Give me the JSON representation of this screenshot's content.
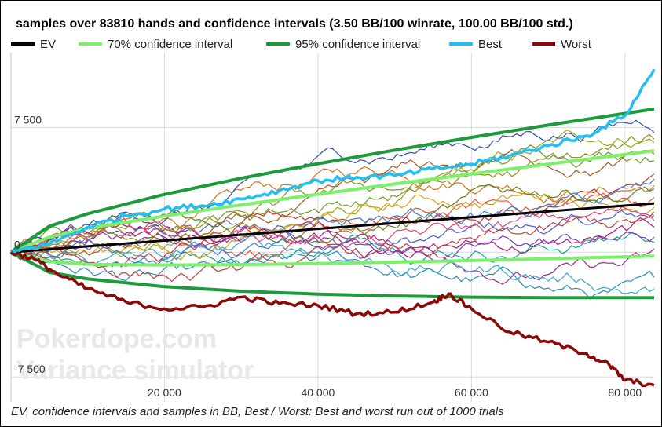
{
  "caption": "EV, confidence intervals and samples in BB, Best / Worst: Best and worst run out of 1000 trials",
  "watermark": [
    "Pokerdope.com",
    "Variance simulator"
  ],
  "colors": {
    "ev": "#000000",
    "ci70": "#7cf06b",
    "ci95": "#1d9a3c",
    "best": "#22bff2",
    "worst": "#8a0a0a",
    "grid": "#d9d9d9"
  },
  "chart_data": {
    "type": "line",
    "title": "samples over 83810 hands and confidence intervals (3.50 BB/100 winrate, 100.00 BB/100 std.)",
    "xlabel": "",
    "ylabel": "",
    "xlim": [
      0,
      83810
    ],
    "ylim": [
      -9000,
      12000
    ],
    "x_ticks": [
      20000,
      40000,
      60000,
      80000
    ],
    "x_tick_labels": [
      "20 000",
      "40 000",
      "60 000",
      "80 000"
    ],
    "y_ticks": [
      7500,
      0,
      -7500
    ],
    "y_tick_labels": [
      "7 500",
      "0",
      "-7 500"
    ],
    "grid": true,
    "legend": {
      "placement": "top",
      "entries": [
        "EV",
        "70% confidence interval",
        "95% confidence interval",
        "Best",
        "Worst"
      ]
    },
    "series": [
      {
        "name": "EV",
        "color": "#000000",
        "style": "line",
        "x": [
          0,
          83810
        ],
        "y": [
          0,
          2933
        ]
      },
      {
        "name": "70% confidence interval",
        "color": "#7cf06b",
        "style": "band",
        "x": [
          0,
          5000,
          10000,
          20000,
          30000,
          40000,
          50000,
          60000,
          70000,
          83810
        ],
        "upper": [
          0,
          907,
          1434,
          2171,
          2845,
          3483,
          4100,
          4702,
          5294,
          6098
        ],
        "lower": [
          0,
          -557,
          -734,
          -771,
          -745,
          -683,
          -600,
          -502,
          -394,
          -232
        ]
      },
      {
        "name": "95% confidence interval",
        "color": "#1d9a3c",
        "style": "band",
        "x": [
          0,
          5000,
          10000,
          20000,
          30000,
          40000,
          50000,
          60000,
          70000,
          83810
        ],
        "upper": [
          0,
          1561,
          2310,
          3472,
          4445,
          5320,
          6133,
          6903,
          7640,
          8605
        ],
        "lower": [
          0,
          -1211,
          -1610,
          -2072,
          -2345,
          -2520,
          -2633,
          -2703,
          -2740,
          -2739
        ]
      },
      {
        "name": "Best",
        "color": "#22bff2",
        "style": "line",
        "x": [
          0,
          5000,
          10000,
          15000,
          20000,
          25000,
          30000,
          35000,
          40000,
          45000,
          50000,
          55000,
          60000,
          65000,
          70000,
          75000,
          80000,
          83810
        ],
        "y": [
          0,
          500,
          1500,
          2200,
          2600,
          2800,
          3200,
          3700,
          4300,
          4500,
          4600,
          5000,
          5300,
          5800,
          6400,
          7000,
          8200,
          11000
        ]
      },
      {
        "name": "Worst",
        "color": "#8a0a0a",
        "style": "line",
        "x": [
          0,
          3000,
          6000,
          10000,
          15000,
          20000,
          25000,
          30000,
          35000,
          40000,
          45000,
          50000,
          55000,
          57000,
          60000,
          65000,
          70000,
          75000,
          78000,
          80000,
          83810
        ],
        "y": [
          0,
          -400,
          -1300,
          -2200,
          -3000,
          -3400,
          -3300,
          -2700,
          -3100,
          -3200,
          -3700,
          -3600,
          -3000,
          -2500,
          -3400,
          -4800,
          -5400,
          -6100,
          -6800,
          -7700,
          -8000
        ]
      }
    ],
    "samples": [
      {
        "color": "#4a5cc9",
        "end": 2200
      },
      {
        "color": "#9aa61c",
        "end": 6600
      },
      {
        "color": "#d4731f",
        "end": 4000
      },
      {
        "color": "#b2186f",
        "end": 1500
      },
      {
        "color": "#2e8ab8",
        "end": -1500
      },
      {
        "color": "#16a390",
        "end": 600
      },
      {
        "color": "#e0593a",
        "end": 3300
      },
      {
        "color": "#7b3fb3",
        "end": 900
      },
      {
        "color": "#6d9b27",
        "end": 5500
      },
      {
        "color": "#c7342e",
        "end": 4700
      },
      {
        "color": "#2f4fa8",
        "end": 7200
      },
      {
        "color": "#d7a11a",
        "end": 2700
      },
      {
        "color": "#9d2a8a",
        "end": 200
      },
      {
        "color": "#3aa6c9",
        "end": -2200
      },
      {
        "color": "#5e7f1a",
        "end": 3800
      },
      {
        "color": "#e0457b",
        "end": 1900
      },
      {
        "color": "#3b7bd6",
        "end": 4400
      },
      {
        "color": "#a35a22",
        "end": 5900
      },
      {
        "color": "#8a8f1e",
        "end": 6800
      },
      {
        "color": "#c04040",
        "end": 2400
      }
    ]
  }
}
